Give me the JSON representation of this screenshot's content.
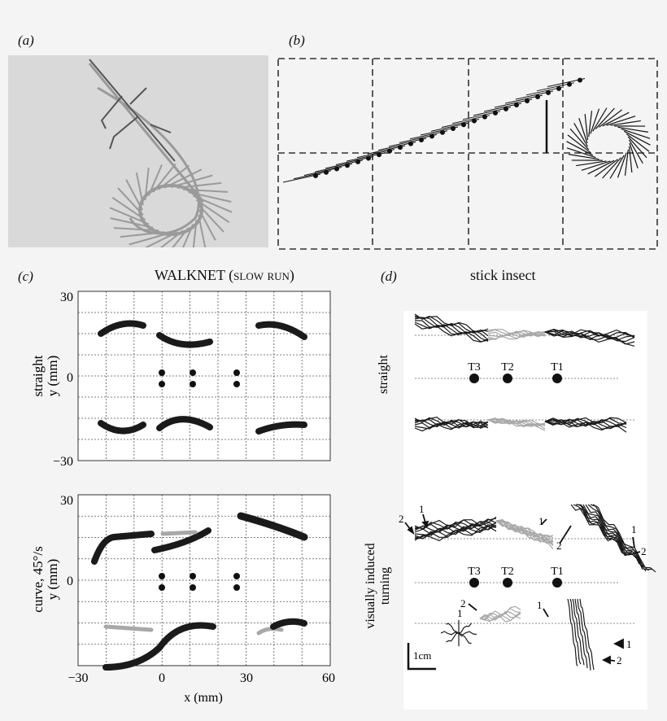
{
  "panels": {
    "a": {
      "label": "(a)"
    },
    "b": {
      "label": "(b)"
    },
    "c": {
      "label": "(c)",
      "title": "WALKNET (slow run)"
    },
    "d": {
      "label": "(d)",
      "title": "stick insect"
    }
  },
  "panel_c": {
    "top": {
      "ylabel_line1": "straight",
      "ylabel_line2": "y (mm)"
    },
    "bottom": {
      "ylabel_line1": "curve, 45°/s",
      "ylabel_line2": "y (mm)"
    },
    "yticks": [
      "30",
      "0",
      "−30"
    ],
    "xticks": [
      "−30",
      "0",
      "30",
      "60"
    ],
    "xlabel": "x (mm)"
  },
  "panel_d": {
    "straight_label": "straight",
    "turning_label_line1": "visually induced",
    "turning_label_line2": "turning",
    "markers": [
      "T3",
      "T2",
      "T1"
    ],
    "arrow_nums": [
      "1",
      "2"
    ],
    "scale_bar": "1cm"
  },
  "colors": {
    "dark_trace": "#1a1a1a",
    "light_trace": "#a8a8a8",
    "grid": "#555555"
  }
}
